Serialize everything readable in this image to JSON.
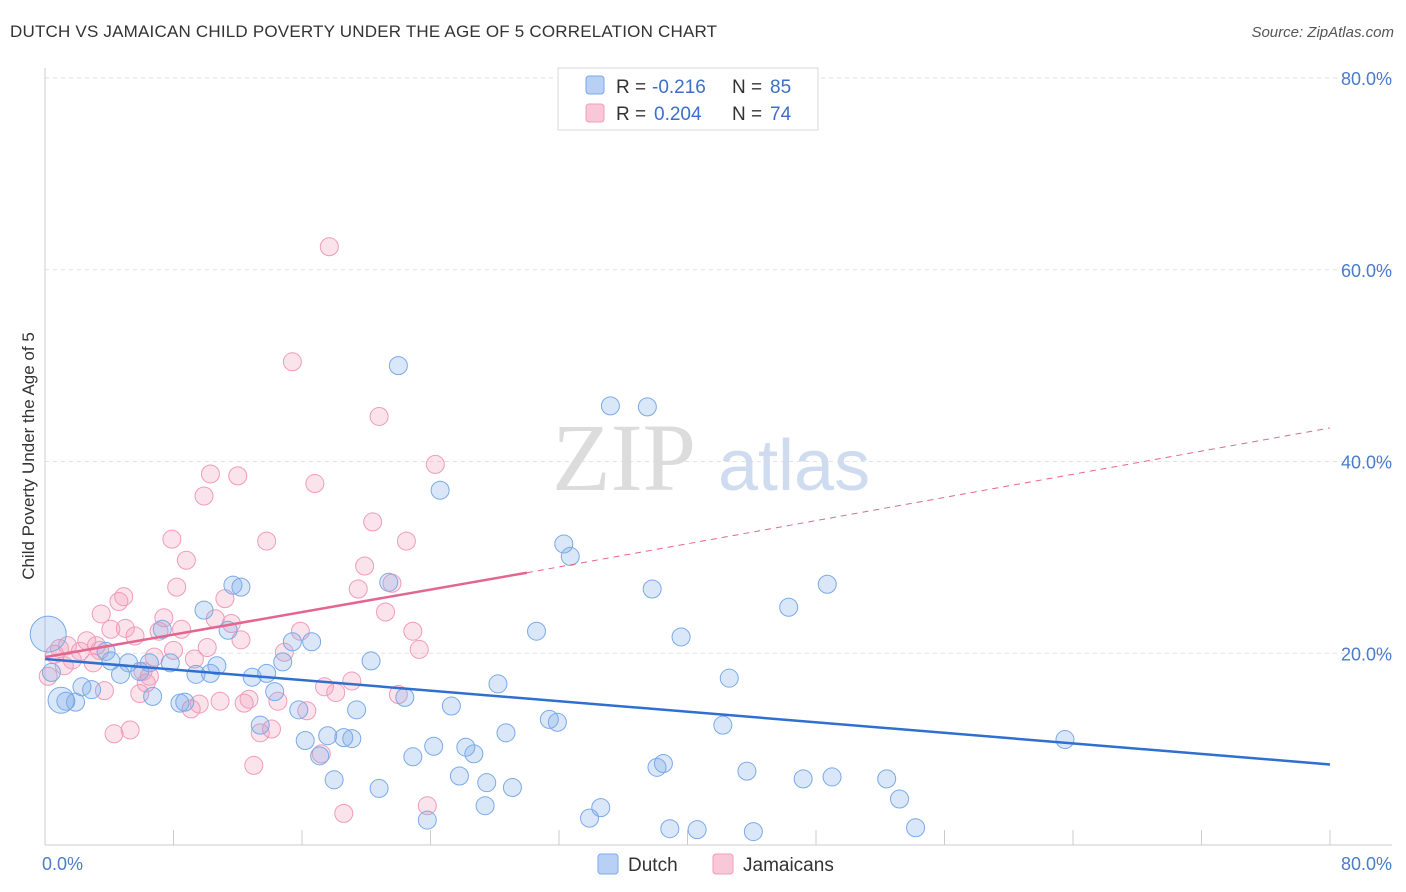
{
  "title": "DUTCH VS JAMAICAN CHILD POVERTY UNDER THE AGE OF 5 CORRELATION CHART",
  "source": "Source: ZipAtlas.com",
  "watermark": {
    "zip": "ZIP",
    "atlas": "atlas"
  },
  "chart_data": {
    "type": "scatter",
    "title": "DUTCH VS JAMAICAN CHILD POVERTY UNDER THE AGE OF 5 CORRELATION CHART",
    "xlabel": "",
    "ylabel": "Child Poverty Under the Age of 5",
    "xlim": [
      0,
      80
    ],
    "ylim": [
      0,
      80
    ],
    "x_tick_labels": [
      "0.0%",
      "80.0%"
    ],
    "y_tick_labels": [
      "20.0%",
      "40.0%",
      "60.0%",
      "80.0%"
    ],
    "y_ticks": [
      20,
      40,
      60,
      80
    ],
    "grid": true,
    "legend_position": "top-center",
    "colors": {
      "dutch": "#7aaae8",
      "jamaicans": "#f29bb8",
      "dutch_line": "#2f6fcf",
      "jamaicans_line": "#e36690"
    },
    "stats": [
      {
        "r_label": "R =",
        "r_value": "-0.216",
        "n_label": "N =",
        "n_value": "85"
      },
      {
        "r_label": "R =",
        "r_value": "0.204",
        "n_label": "N =",
        "n_value": "74"
      }
    ],
    "series": [
      {
        "name": "Dutch",
        "trend": {
          "x": [
            0,
            80
          ],
          "y": [
            19.4,
            8.4
          ]
        },
        "points": [
          [
            0.2,
            22.0
          ],
          [
            0.4,
            18.0
          ],
          [
            1.3,
            15.0
          ],
          [
            1.9,
            14.9
          ],
          [
            2.3,
            16.5
          ],
          [
            2.9,
            16.2
          ],
          [
            3.8,
            20.2
          ],
          [
            4.1,
            19.2
          ],
          [
            4.7,
            17.8
          ],
          [
            5.2,
            19.0
          ],
          [
            5.9,
            18.1
          ],
          [
            6.5,
            19.0
          ],
          [
            6.7,
            15.5
          ],
          [
            7.3,
            22.5
          ],
          [
            7.8,
            19.0
          ],
          [
            8.4,
            14.8
          ],
          [
            8.7,
            14.9
          ],
          [
            9.4,
            17.8
          ],
          [
            9.9,
            24.5
          ],
          [
            10.3,
            17.9
          ],
          [
            10.7,
            18.7
          ],
          [
            11.4,
            22.4
          ],
          [
            11.7,
            27.1
          ],
          [
            12.2,
            26.9
          ],
          [
            12.9,
            17.5
          ],
          [
            13.4,
            12.5
          ],
          [
            13.8,
            17.9
          ],
          [
            14.3,
            16.0
          ],
          [
            14.8,
            19.1
          ],
          [
            15.4,
            21.2
          ],
          [
            15.8,
            14.1
          ],
          [
            16.2,
            10.9
          ],
          [
            16.6,
            21.2
          ],
          [
            17.1,
            9.3
          ],
          [
            17.6,
            11.4
          ],
          [
            18.0,
            6.8
          ],
          [
            18.6,
            11.2
          ],
          [
            19.1,
            11.1
          ],
          [
            19.4,
            14.1
          ],
          [
            20.3,
            19.2
          ],
          [
            20.8,
            5.9
          ],
          [
            21.4,
            27.4
          ],
          [
            22.0,
            50.0
          ],
          [
            22.4,
            15.4
          ],
          [
            22.9,
            9.2
          ],
          [
            23.8,
            2.6
          ],
          [
            24.2,
            10.3
          ],
          [
            24.6,
            37.0
          ],
          [
            25.3,
            14.5
          ],
          [
            25.8,
            7.2
          ],
          [
            26.2,
            10.2
          ],
          [
            26.7,
            9.5
          ],
          [
            27.4,
            4.1
          ],
          [
            27.5,
            6.5
          ],
          [
            28.2,
            16.8
          ],
          [
            28.7,
            11.7
          ],
          [
            29.1,
            6.0
          ],
          [
            30.6,
            22.3
          ],
          [
            31.4,
            13.1
          ],
          [
            31.9,
            12.8
          ],
          [
            32.3,
            31.4
          ],
          [
            32.7,
            30.1
          ],
          [
            33.9,
            2.8
          ],
          [
            34.6,
            3.9
          ],
          [
            35.2,
            45.8
          ],
          [
            37.5,
            45.7
          ],
          [
            37.8,
            26.7
          ],
          [
            38.1,
            8.1
          ],
          [
            38.5,
            8.5
          ],
          [
            38.9,
            1.7
          ],
          [
            39.6,
            21.7
          ],
          [
            40.6,
            1.6
          ],
          [
            42.2,
            12.5
          ],
          [
            42.6,
            17.4
          ],
          [
            43.7,
            7.7
          ],
          [
            44.1,
            1.4
          ],
          [
            46.3,
            24.8
          ],
          [
            47.2,
            6.9
          ],
          [
            48.7,
            27.2
          ],
          [
            49.0,
            7.1
          ],
          [
            52.4,
            6.9
          ],
          [
            53.2,
            4.8
          ],
          [
            54.2,
            1.8
          ],
          [
            63.5,
            11.0
          ],
          [
            1.0,
            15.1
          ]
        ]
      },
      {
        "name": "Jamaicans",
        "trend_solid": {
          "x": [
            0,
            30
          ],
          "y": [
            19.6,
            28.4
          ]
        },
        "trend_dashed": {
          "x": [
            30,
            80
          ],
          "y": [
            28.4,
            43.5
          ]
        },
        "points": [
          [
            0.2,
            17.6
          ],
          [
            0.6,
            19.9
          ],
          [
            0.9,
            20.5
          ],
          [
            1.2,
            18.7
          ],
          [
            1.4,
            20.8
          ],
          [
            1.7,
            19.3
          ],
          [
            2.2,
            20.2
          ],
          [
            2.6,
            21.3
          ],
          [
            3.0,
            19.0
          ],
          [
            3.2,
            20.8
          ],
          [
            3.5,
            24.1
          ],
          [
            3.7,
            16.1
          ],
          [
            4.1,
            22.5
          ],
          [
            4.3,
            11.6
          ],
          [
            4.6,
            25.4
          ],
          [
            4.9,
            25.9
          ],
          [
            5.3,
            12.0
          ],
          [
            5.6,
            21.8
          ],
          [
            5.9,
            15.8
          ],
          [
            6.3,
            16.9
          ],
          [
            6.5,
            17.6
          ],
          [
            6.8,
            19.6
          ],
          [
            7.1,
            22.3
          ],
          [
            7.4,
            23.7
          ],
          [
            7.9,
            31.9
          ],
          [
            8.2,
            26.9
          ],
          [
            8.5,
            22.5
          ],
          [
            8.8,
            29.7
          ],
          [
            9.1,
            14.2
          ],
          [
            9.3,
            19.4
          ],
          [
            9.6,
            14.7
          ],
          [
            9.9,
            36.4
          ],
          [
            10.3,
            38.7
          ],
          [
            10.6,
            23.6
          ],
          [
            10.9,
            15.0
          ],
          [
            11.2,
            25.7
          ],
          [
            11.6,
            23.1
          ],
          [
            12.0,
            38.5
          ],
          [
            12.4,
            14.8
          ],
          [
            12.7,
            15.2
          ],
          [
            13.0,
            8.3
          ],
          [
            13.4,
            11.7
          ],
          [
            13.8,
            31.7
          ],
          [
            14.1,
            12.1
          ],
          [
            14.5,
            15.0
          ],
          [
            14.9,
            20.1
          ],
          [
            15.4,
            50.4
          ],
          [
            15.9,
            22.3
          ],
          [
            16.3,
            14.0
          ],
          [
            16.8,
            37.7
          ],
          [
            17.2,
            9.5
          ],
          [
            17.7,
            62.4
          ],
          [
            18.1,
            15.9
          ],
          [
            18.6,
            3.3
          ],
          [
            19.1,
            17.1
          ],
          [
            19.5,
            26.7
          ],
          [
            19.9,
            29.1
          ],
          [
            20.4,
            33.7
          ],
          [
            20.8,
            44.7
          ],
          [
            21.2,
            24.3
          ],
          [
            21.6,
            27.3
          ],
          [
            22.0,
            15.7
          ],
          [
            22.5,
            31.7
          ],
          [
            22.9,
            22.3
          ],
          [
            23.3,
            20.4
          ],
          [
            23.8,
            4.1
          ],
          [
            24.3,
            39.7
          ],
          [
            3.4,
            20.3
          ],
          [
            5.0,
            22.6
          ],
          [
            6.1,
            18.1
          ],
          [
            8.0,
            20.3
          ],
          [
            10.1,
            20.6
          ],
          [
            12.2,
            21.4
          ],
          [
            17.4,
            16.5
          ]
        ]
      }
    ]
  },
  "legend_bottom": [
    {
      "label": "Dutch"
    },
    {
      "label": "Jamaicans"
    }
  ]
}
